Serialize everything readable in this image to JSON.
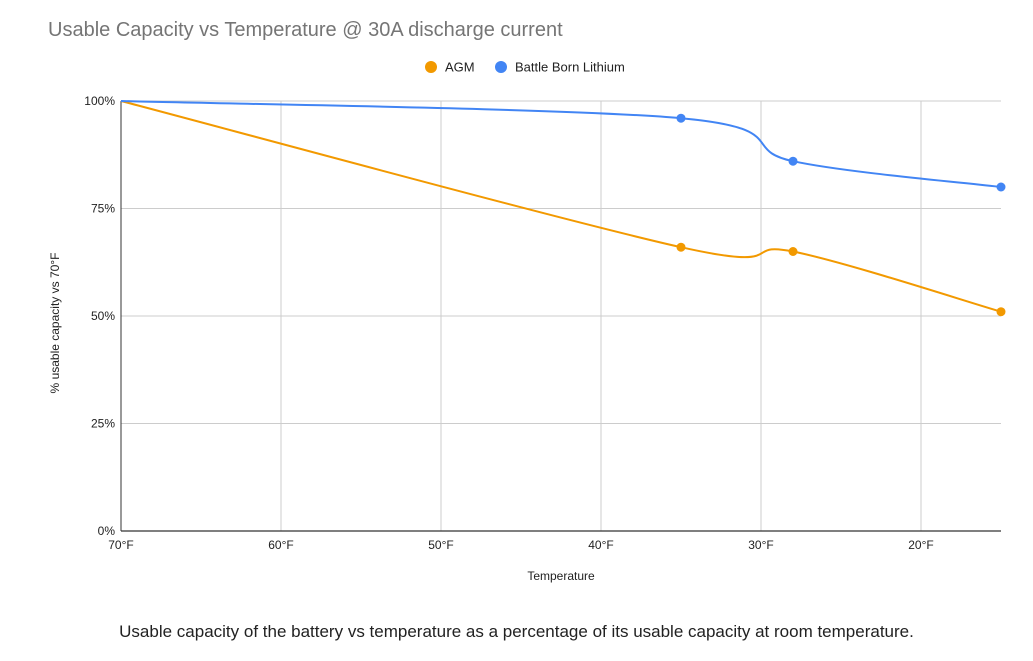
{
  "chart_data": {
    "type": "line",
    "title": "Usable Capacity vs Temperature @ 30A discharge current",
    "xlabel": "Temperature",
    "ylabel": "% usable capacity vs 70°F",
    "x_ticks": [
      "70°F",
      "60°F",
      "50°F",
      "40°F",
      "30°F",
      "20°F"
    ],
    "y_ticks": [
      "0%",
      "25%",
      "50%",
      "75%",
      "100%"
    ],
    "x_reversed": true,
    "xlim": [
      70,
      15
    ],
    "ylim": [
      0,
      100
    ],
    "grid": true,
    "legend_position": "top-center",
    "series": [
      {
        "name": "AGM",
        "color": "#f29900",
        "x": [
          70,
          35,
          28,
          15
        ],
        "y": [
          100,
          66,
          65,
          51
        ]
      },
      {
        "name": "Battle Born Lithium",
        "color": "#4285f4",
        "x": [
          70,
          35,
          28,
          15
        ],
        "y": [
          100,
          96,
          86,
          80
        ]
      }
    ]
  },
  "caption": "Usable capacity of the battery vs temperature as a percentage of its usable capacity at room temperature."
}
